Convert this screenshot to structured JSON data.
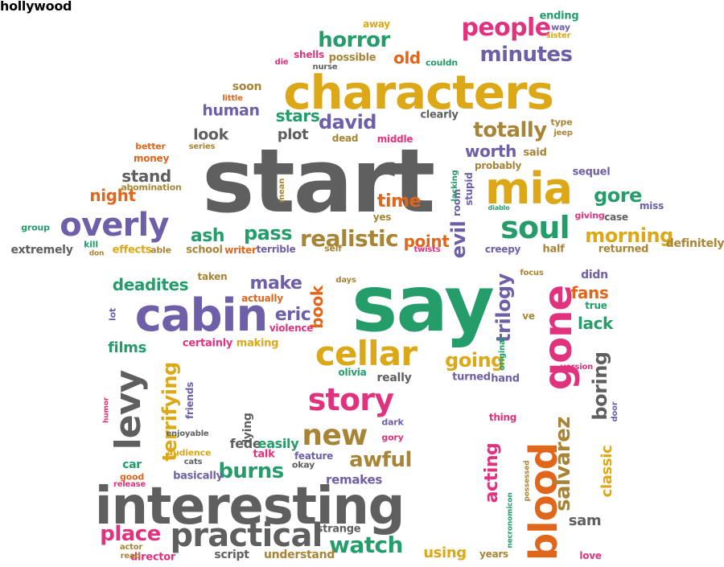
{
  "colors": {
    "gray": "#5f5f5f",
    "gold": "#dca818",
    "purple": "#6f5fa8",
    "green": "#259d6a",
    "pink": "#e1337d",
    "orange": "#e0661c",
    "olive": "#a88536"
  },
  "words": [
    {
      "text": "start",
      "color": "gray"
    },
    {
      "text": "say",
      "color": "green"
    },
    {
      "text": "characters",
      "color": "gold"
    },
    {
      "text": "interesting",
      "color": "gray"
    },
    {
      "text": "cabin",
      "color": "purple"
    },
    {
      "text": "blood",
      "color": "orange"
    },
    {
      "text": "gone",
      "color": "pink"
    },
    {
      "text": "mia",
      "color": "gold"
    },
    {
      "text": "cellar",
      "color": "gold"
    },
    {
      "text": "overly",
      "color": "purple"
    },
    {
      "text": "levy",
      "color": "gray"
    },
    {
      "text": "story",
      "color": "pink"
    },
    {
      "text": "practical",
      "color": "gray"
    },
    {
      "text": "soul",
      "color": "green"
    },
    {
      "text": "new",
      "color": "olive"
    },
    {
      "text": "realistic",
      "color": "olive"
    },
    {
      "text": "people",
      "color": "pink"
    },
    {
      "text": "horror",
      "color": "green"
    },
    {
      "text": "minutes",
      "color": "purple"
    },
    {
      "text": "totally",
      "color": "olive"
    },
    {
      "text": "david",
      "color": "purple"
    },
    {
      "text": "terrifying",
      "color": "gold"
    },
    {
      "text": "awful",
      "color": "olive"
    },
    {
      "text": "watch",
      "color": "green"
    },
    {
      "text": "place",
      "color": "pink"
    },
    {
      "text": "burns",
      "color": "green"
    },
    {
      "text": "going",
      "color": "gold"
    },
    {
      "text": "trilogy",
      "color": "purple"
    },
    {
      "text": "boring",
      "color": "gray"
    },
    {
      "text": "salvarez",
      "color": "olive"
    },
    {
      "text": "gore",
      "color": "green"
    },
    {
      "text": "morning",
      "color": "gold"
    },
    {
      "text": "pass",
      "color": "green"
    },
    {
      "text": "ash",
      "color": "green"
    },
    {
      "text": "evil",
      "color": "purple"
    },
    {
      "text": "make",
      "color": "purple"
    },
    {
      "text": "deadites",
      "color": "green"
    },
    {
      "text": "eric",
      "color": "purple"
    },
    {
      "text": "book",
      "color": "orange"
    },
    {
      "text": "time",
      "color": "orange"
    },
    {
      "text": "point",
      "color": "orange"
    },
    {
      "text": "worth",
      "color": "purple"
    },
    {
      "text": "old",
      "color": "orange"
    },
    {
      "text": "stars",
      "color": "green"
    },
    {
      "text": "human",
      "color": "purple"
    },
    {
      "text": "look",
      "color": "gray"
    },
    {
      "text": "plot",
      "color": "gray"
    },
    {
      "text": "stand",
      "color": "gray"
    },
    {
      "text": "night",
      "color": "orange"
    },
    {
      "text": "fans",
      "color": "orange"
    },
    {
      "text": "lack",
      "color": "green"
    },
    {
      "text": "films",
      "color": "green"
    },
    {
      "text": "acting",
      "color": "pink"
    },
    {
      "text": "classic",
      "color": "gold"
    },
    {
      "text": "sam",
      "color": "gray"
    },
    {
      "text": "using",
      "color": "gold"
    },
    {
      "text": "strange",
      "color": "gray"
    },
    {
      "text": "remakes",
      "color": "purple"
    },
    {
      "text": "fede",
      "color": "gray"
    },
    {
      "text": "easily",
      "color": "green"
    },
    {
      "text": "car",
      "color": "green"
    },
    {
      "text": "script",
      "color": "gray"
    },
    {
      "text": "understand",
      "color": "olive"
    },
    {
      "text": "director",
      "color": "pink"
    },
    {
      "text": "read",
      "color": "olive"
    },
    {
      "text": "actor",
      "color": "olive"
    },
    {
      "text": "years",
      "color": "olive"
    },
    {
      "text": "love",
      "color": "pink"
    },
    {
      "text": "extremely",
      "color": "gray"
    },
    {
      "text": "effects",
      "color": "gold"
    },
    {
      "text": "able",
      "color": "olive"
    },
    {
      "text": "school",
      "color": "olive"
    },
    {
      "text": "writer",
      "color": "orange"
    },
    {
      "text": "terrible",
      "color": "purple"
    },
    {
      "text": "self",
      "color": "olive"
    },
    {
      "text": "twists",
      "color": "pink"
    },
    {
      "text": "creepy",
      "color": "purple"
    },
    {
      "text": "half",
      "color": "olive"
    },
    {
      "text": "returned",
      "color": "olive"
    },
    {
      "text": "definitely",
      "color": "olive"
    },
    {
      "text": "group",
      "color": "green"
    },
    {
      "text": "kill",
      "color": "green"
    },
    {
      "text": "don",
      "color": "olive"
    },
    {
      "text": "abomination",
      "color": "olive"
    },
    {
      "text": "money",
      "color": "orange"
    },
    {
      "text": "better",
      "color": "orange"
    },
    {
      "text": "series",
      "color": "olive"
    },
    {
      "text": "dead",
      "color": "olive"
    },
    {
      "text": "middle",
      "color": "pink"
    },
    {
      "text": "clearly",
      "color": "gray"
    },
    {
      "text": "probably",
      "color": "olive"
    },
    {
      "text": "said",
      "color": "olive"
    },
    {
      "text": "sequel",
      "color": "purple"
    },
    {
      "text": "type",
      "color": "olive"
    },
    {
      "text": "jeep",
      "color": "olive"
    },
    {
      "text": "giving",
      "color": "pink"
    },
    {
      "text": "case",
      "color": "gray"
    },
    {
      "text": "miss",
      "color": "purple"
    },
    {
      "text": "yes",
      "color": "olive"
    },
    {
      "text": "diablo",
      "color": "green"
    },
    {
      "text": "room",
      "color": "purple"
    },
    {
      "text": "stupid",
      "color": "purple"
    },
    {
      "text": "lacking",
      "color": "green"
    },
    {
      "text": "mean",
      "color": "olive"
    },
    {
      "text": "ending",
      "color": "green"
    },
    {
      "text": "way",
      "color": "purple"
    },
    {
      "text": "sister",
      "color": "gold"
    },
    {
      "text": "away",
      "color": "gold"
    },
    {
      "text": "couldn",
      "color": "green"
    },
    {
      "text": "possible",
      "color": "olive"
    },
    {
      "text": "shells",
      "color": "pink"
    },
    {
      "text": "nurse",
      "color": "gray"
    },
    {
      "text": "die",
      "color": "pink"
    },
    {
      "text": "soon",
      "color": "olive"
    },
    {
      "text": "little",
      "color": "orange"
    },
    {
      "text": "taken",
      "color": "olive"
    },
    {
      "text": "actually",
      "color": "orange"
    },
    {
      "text": "violence",
      "color": "pink"
    },
    {
      "text": "days",
      "color": "olive"
    },
    {
      "text": "focus",
      "color": "olive"
    },
    {
      "text": "didn",
      "color": "purple"
    },
    {
      "text": "true",
      "color": "green"
    },
    {
      "text": "ve",
      "color": "olive"
    },
    {
      "text": "lot",
      "color": "purple"
    },
    {
      "text": "certainly",
      "color": "pink"
    },
    {
      "text": "making",
      "color": "gold"
    },
    {
      "text": "original",
      "color": "green"
    },
    {
      "text": "version",
      "color": "pink"
    },
    {
      "text": "olivia",
      "color": "green"
    },
    {
      "text": "really",
      "color": "gray"
    },
    {
      "text": "turned",
      "color": "purple"
    },
    {
      "text": "hand",
      "color": "purple"
    },
    {
      "text": "friends",
      "color": "purple"
    },
    {
      "text": "enjoyable",
      "color": "gray"
    },
    {
      "text": "lying",
      "color": "gray"
    },
    {
      "text": "dark",
      "color": "purple"
    },
    {
      "text": "gory",
      "color": "pink"
    },
    {
      "text": "thing",
      "color": "pink"
    },
    {
      "text": "door",
      "color": "purple"
    },
    {
      "text": "audience",
      "color": "gold"
    },
    {
      "text": "cats",
      "color": "gray"
    },
    {
      "text": "talk",
      "color": "pink"
    },
    {
      "text": "feature",
      "color": "purple"
    },
    {
      "text": "okay",
      "color": "gray"
    },
    {
      "text": "basically",
      "color": "purple"
    },
    {
      "text": "good",
      "color": "orange"
    },
    {
      "text": "release",
      "color": "pink"
    },
    {
      "text": "humor",
      "color": "pink"
    },
    {
      "text": "necronomicon",
      "color": "green"
    },
    {
      "text": "possessed",
      "color": "olive"
    },
    {
      "text": "hollywood",
      "color": "olive"
    }
  ]
}
